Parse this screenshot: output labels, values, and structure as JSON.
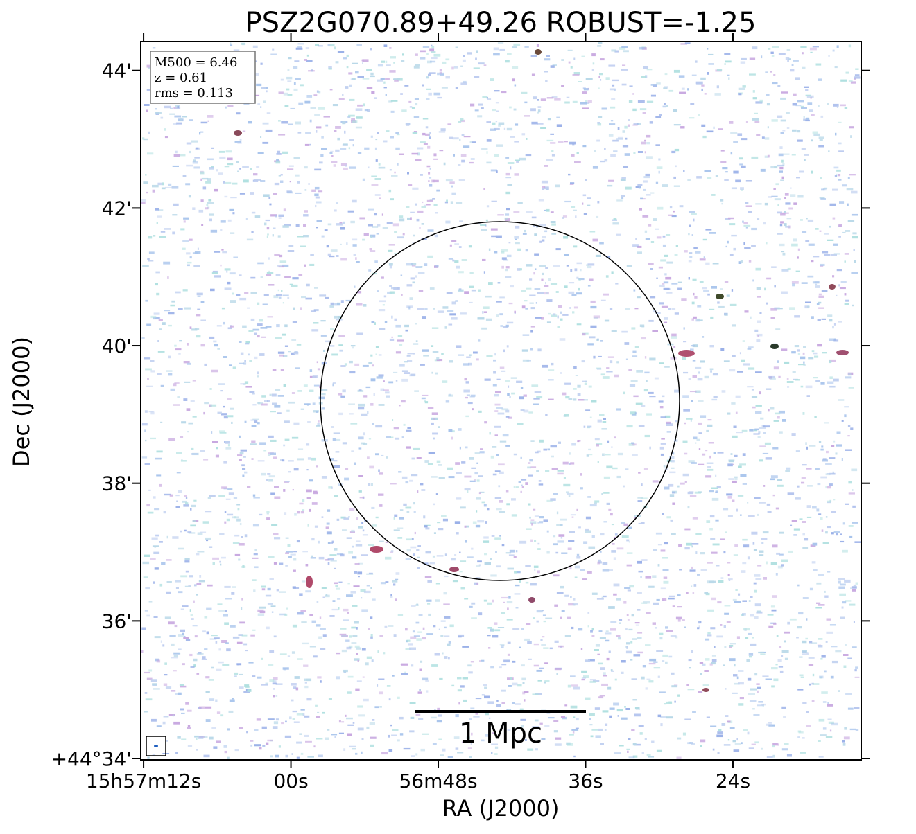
{
  "chart_data": {
    "type": "image",
    "title": "PSZ2G070.89+49.26 ROBUST=-1.25",
    "x_label": "RA (J2000)",
    "y_label": "Dec (J2000)",
    "xlim": [
      72.23,
      13.55
    ],
    "xticks": [
      {
        "value": 72,
        "label": "15h57m12s"
      },
      {
        "value": 60,
        "label": "00s"
      },
      {
        "value": 48,
        "label": "56m48s"
      },
      {
        "value": 36,
        "label": "36s"
      },
      {
        "value": 24,
        "label": "24s"
      }
    ],
    "ylim": [
      33.98,
      44.42
    ],
    "yticks": [
      {
        "value": 34,
        "label": "+44°34'"
      },
      {
        "value": 36,
        "label": "36'"
      },
      {
        "value": 38,
        "label": "38'"
      },
      {
        "value": 40,
        "label": "40'"
      },
      {
        "value": 42,
        "label": "42'"
      },
      {
        "value": 44,
        "label": "44'"
      }
    ],
    "annotations": [
      "M500 = 6.46",
      "z = 0.61",
      "rms = 0.113"
    ],
    "scalebar_label": "1 Mpc"
  }
}
